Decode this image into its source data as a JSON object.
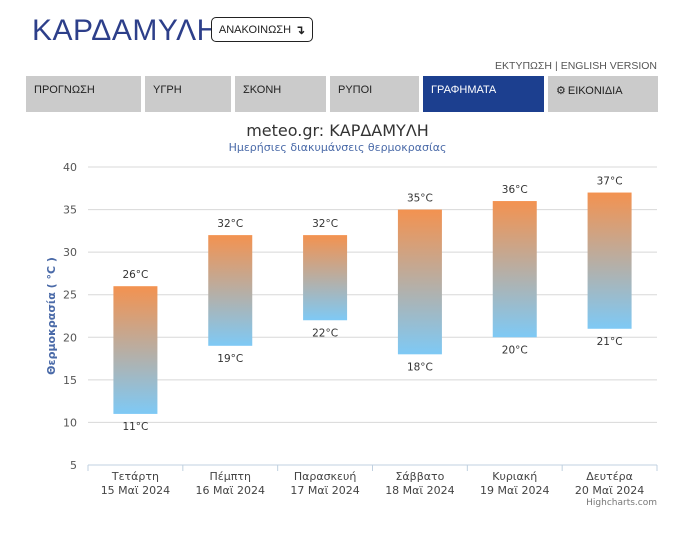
{
  "header": {
    "title": "ΚΑΡΔΑΜΥΛΗ",
    "announce_label": "ΑΝΑΚΟΙΝΩΣΗ",
    "announce_icon": "arrow-down-icon"
  },
  "toplinks": {
    "print": "ΕΚΤΥΠΩΣΗ",
    "separator": "|",
    "english": "ENGLISH VERSION"
  },
  "tabs": [
    {
      "label": "ΠΡΟΓΝΩΣΗ",
      "active": false
    },
    {
      "label": "ΥΓΡΗ",
      "active": false
    },
    {
      "label": "ΣΚΟΝΗ",
      "active": false
    },
    {
      "label": "ΡΥΠΟΙ",
      "active": false
    },
    {
      "label": "ΓΡΑΦΗΜΑΤΑ",
      "active": true
    },
    {
      "label": "ΕΙΚΟΝΙΔΙΑ",
      "active": false,
      "icon": "gear-icon"
    }
  ],
  "colors": {
    "accent": "#1c3f8f",
    "bar_top": "#f39250",
    "bar_bottom": "#7ec9f5"
  },
  "chart_data": {
    "type": "bar",
    "subtype": "columnrange",
    "title": "meteo.gr: ΚΑΡΔΑΜΥΛΗ",
    "subtitle": "Ημερήσιες διακυμάνσεις θερμοκρασίας",
    "ylabel": "Θερμοκρασία ( °C )",
    "ylim": [
      5,
      40
    ],
    "yticks": [
      5,
      10,
      15,
      20,
      25,
      30,
      35,
      40
    ],
    "grid": true,
    "categories": [
      {
        "day": "Τετάρτη",
        "date": "15 Μαϊ 2024"
      },
      {
        "day": "Πέμπτη",
        "date": "16 Μαϊ 2024"
      },
      {
        "day": "Παρασκευή",
        "date": "17 Μαϊ 2024"
      },
      {
        "day": "Σάββατο",
        "date": "18 Μαϊ 2024"
      },
      {
        "day": "Κυριακή",
        "date": "19 Μαϊ 2024"
      },
      {
        "day": "Δευτέρα",
        "date": "20 Μαϊ 2024"
      }
    ],
    "series": [
      {
        "low": [
          11,
          19,
          22,
          18,
          20,
          21
        ],
        "high": [
          26,
          32,
          32,
          35,
          36,
          37
        ]
      }
    ],
    "unit": "°C"
  },
  "credits": "Highcharts.com"
}
